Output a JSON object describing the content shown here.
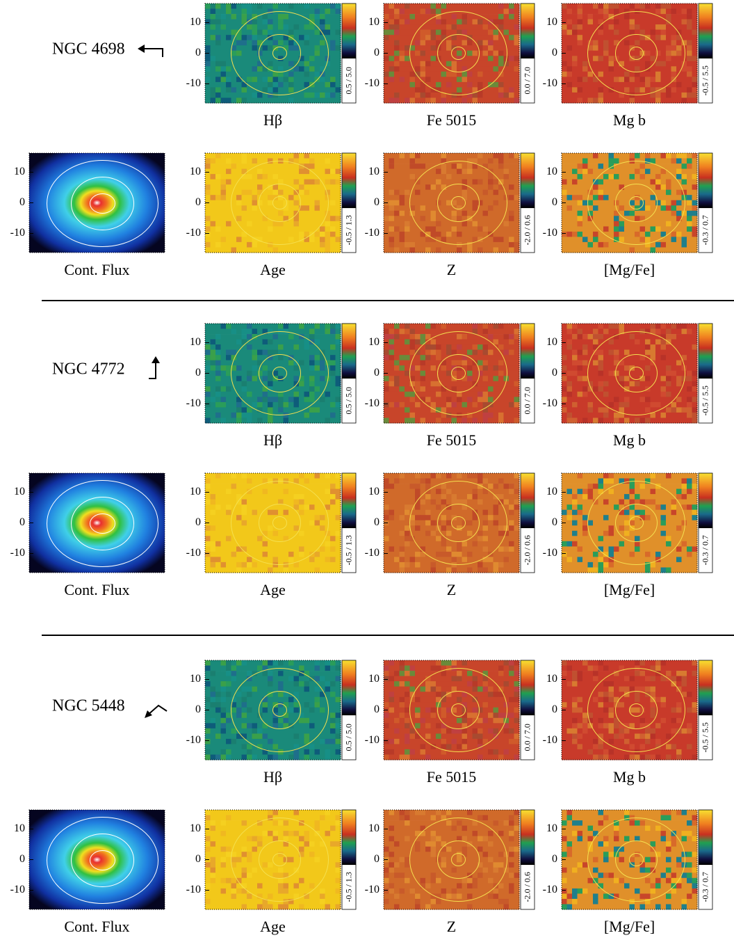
{
  "yticks": [
    10,
    0,
    -10
  ],
  "galaxies": [
    {
      "name": "NGC 4698",
      "panels": [
        {
          "caption": "Hβ",
          "range": "0.5 / 5.0"
        },
        {
          "caption": "Fe 5015",
          "range": "0.0 / 7.0"
        },
        {
          "caption": "Mg b",
          "range": "-0.5 / 5.5"
        },
        {
          "caption": "Cont. Flux"
        },
        {
          "caption": "Age",
          "range": "-0.5 / 1.3"
        },
        {
          "caption": "Z",
          "range": "-2.0 / 0.6"
        },
        {
          "caption": "[Mg/Fe]",
          "range": "-0.3 / 0.7"
        }
      ]
    },
    {
      "name": "NGC 4772",
      "panels": [
        {
          "caption": "Hβ",
          "range": "0.5 / 5.0"
        },
        {
          "caption": "Fe 5015",
          "range": "0.0 / 7.0"
        },
        {
          "caption": "Mg b",
          "range": "-0.5 / 5.5"
        },
        {
          "caption": "Cont. Flux"
        },
        {
          "caption": "Age",
          "range": "-0.5 / 1.3"
        },
        {
          "caption": "Z",
          "range": "-2.0 / 0.6"
        },
        {
          "caption": "[Mg/Fe]",
          "range": "-0.3 / 0.7"
        }
      ]
    },
    {
      "name": "NGC 5448",
      "panels": [
        {
          "caption": "Hβ",
          "range": "0.5 / 5.0"
        },
        {
          "caption": "Fe 5015",
          "range": "0.0 / 7.0"
        },
        {
          "caption": "Mg b",
          "range": "-0.5 / 5.5"
        },
        {
          "caption": "Cont. Flux"
        },
        {
          "caption": "Age",
          "range": "-0.5 / 1.3"
        },
        {
          "caption": "Z",
          "range": "-2.0 / 0.6"
        },
        {
          "caption": "[Mg/Fe]",
          "range": "-0.3 / 0.7"
        }
      ]
    }
  ]
}
